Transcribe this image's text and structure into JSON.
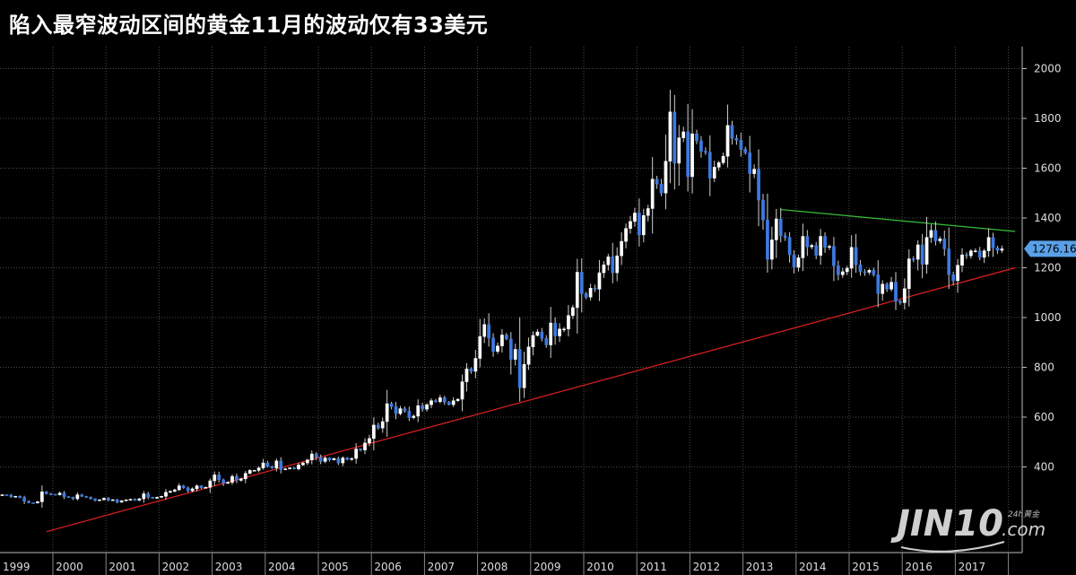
{
  "title": "陷入最窄波动区间的黄金11月的波动仅有33美元",
  "chart_data": {
    "type": "candlestick",
    "title": "陷入最窄波动区间的黄金11月的波动仅有33美元",
    "x_tick_labels": [
      "1999",
      "2000",
      "2001",
      "2002",
      "2003",
      "2004",
      "2005",
      "2006",
      "2007",
      "2008",
      "2009",
      "2010",
      "2011",
      "2012",
      "2013",
      "2014",
      "2015",
      "2016",
      "2017"
    ],
    "y_tick_labels": [
      "2000",
      "1800",
      "1600",
      "1400",
      "1200",
      "1000",
      "800",
      "600",
      "400"
    ],
    "ylim": [
      140,
      2080
    ],
    "xlim": [
      "1998-12",
      "2018-02"
    ],
    "grid": true,
    "last_price": "1276.16",
    "series": [
      {
        "type": "candles",
        "interval": "month",
        "approx_monthly_close": [
          [
            1999,
            [
              288,
              287,
              280,
              282,
              277,
              262,
              256,
              255,
              260,
              300,
              292,
              290
            ]
          ],
          [
            2000,
            [
              288,
              295,
              280,
              278,
              272,
              288,
              282,
              278,
              272,
              266,
              268,
              274
            ]
          ],
          [
            2001,
            [
              266,
              268,
              258,
              264,
              268,
              270,
              266,
              272,
              292,
              278,
              274,
              278
            ]
          ],
          [
            2002,
            [
              282,
              298,
              302,
              308,
              324,
              316,
              304,
              312,
              324,
              316,
              318,
              344
            ]
          ],
          [
            2003,
            [
              368,
              348,
              334,
              338,
              362,
              346,
              352,
              374,
              386,
              386,
              396,
              416
            ]
          ],
          [
            2004,
            [
              402,
              396,
              424,
              390,
              392,
              396,
              392,
              408,
              416,
              428,
              452,
              438
            ]
          ],
          [
            2005,
            [
              422,
              436,
              428,
              434,
              416,
              436,
              430,
              434,
              472,
              468,
              496,
              514
            ]
          ],
          [
            2006,
            [
              568,
              556,
              582,
              654,
              642,
              614,
              634,
              624,
              598,
              604,
              646,
              632
            ]
          ],
          [
            2007,
            [
              650,
              666,
              662,
              678,
              660,
              650,
              666,
              672,
              742,
              794,
              784,
              836
            ]
          ],
          [
            2008,
            [
              924,
              972,
              918,
              864,
              886,
              930,
              914,
              832,
              872,
              718,
              812,
              882
            ]
          ],
          [
            2009,
            [
              928,
              942,
              916,
              890,
              978,
              926,
              954,
              954,
              1008,
              1040,
              1182,
              1096
            ]
          ],
          [
            2010,
            [
              1082,
              1118,
              1114,
              1180,
              1212,
              1244,
              1180,
              1248,
              1306,
              1358,
              1386,
              1420
            ]
          ],
          [
            2011,
            [
              1332,
              1410,
              1438,
              1556,
              1536,
              1500,
              1628,
              1826,
              1620,
              1722,
              1746,
              1566
            ]
          ],
          [
            2012,
            [
              1738,
              1710,
              1668,
              1664,
              1560,
              1604,
              1622,
              1648,
              1772,
              1720,
              1712,
              1676
            ]
          ],
          [
            2013,
            [
              1662,
              1578,
              1596,
              1472,
              1392,
              1234,
              1312,
              1396,
              1328,
              1322,
              1252,
              1202
            ]
          ],
          [
            2014,
            [
              1240,
              1326,
              1284,
              1290,
              1250,
              1326,
              1282,
              1286,
              1208,
              1172,
              1184,
              1198
            ]
          ],
          [
            2015,
            [
              1282,
              1212,
              1184,
              1182,
              1190,
              1172,
              1096,
              1134,
              1114,
              1142,
              1066,
              1060
            ]
          ],
          [
            2016,
            [
              1116,
              1236,
              1234,
              1292,
              1214,
              1322,
              1350,
              1308,
              1316,
              1276,
              1172,
              1148
            ]
          ],
          [
            2017,
            [
              1210,
              1252,
              1248,
              1268,
              1268,
              1242,
              1268,
              1322,
              1280,
              1270,
              1276
            ]
          ]
        ]
      },
      {
        "type": "trendline",
        "color": "#e02020",
        "points": [
          [
            "1999-11",
            140
          ],
          [
            "2018-02",
            1200
          ]
        ]
      },
      {
        "type": "trendline",
        "color": "#38c038",
        "points": [
          [
            "2013-09",
            1434
          ],
          [
            "2018-02",
            1346
          ]
        ]
      }
    ]
  },
  "watermark": {
    "brand": "JIN10",
    "domain": ".com",
    "small_text": "24h黄金"
  }
}
